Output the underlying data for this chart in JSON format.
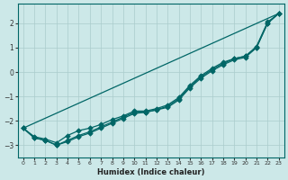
{
  "xlabel": "Humidex (Indice chaleur)",
  "background_color": "#cce8e8",
  "grid_color": "#aacccc",
  "line_color": "#006666",
  "xlim": [
    -0.5,
    23.5
  ],
  "ylim": [
    -3.5,
    2.8
  ],
  "yticks": [
    -3,
    -2,
    -1,
    0,
    1,
    2
  ],
  "xticks": [
    0,
    1,
    2,
    3,
    4,
    5,
    6,
    7,
    8,
    9,
    10,
    11,
    12,
    13,
    14,
    15,
    16,
    17,
    18,
    19,
    20,
    21,
    22,
    23
  ],
  "line1_x": [
    0,
    1,
    2,
    3,
    4,
    5,
    6,
    7,
    8,
    9,
    10,
    11,
    12,
    13,
    14,
    15,
    16,
    17,
    18,
    19,
    20,
    21,
    22,
    23
  ],
  "line1_y": [
    -2.3,
    -2.7,
    -2.8,
    -3.0,
    -2.85,
    -2.65,
    -2.5,
    -2.3,
    -2.1,
    -1.9,
    -1.7,
    -1.65,
    -1.55,
    -1.4,
    -1.1,
    -0.6,
    -0.2,
    0.1,
    0.35,
    0.55,
    0.65,
    1.05,
    2.05,
    2.4
  ],
  "line2_x": [
    0,
    1,
    2,
    3,
    4,
    5,
    6,
    7,
    8,
    9,
    10,
    11,
    12,
    13,
    14,
    15,
    16,
    17,
    18,
    19,
    20,
    21,
    22,
    23
  ],
  "line2_y": [
    -2.3,
    -2.7,
    -2.8,
    -3.0,
    -2.8,
    -2.6,
    -2.45,
    -2.25,
    -2.05,
    -1.85,
    -1.65,
    -1.65,
    -1.55,
    -1.45,
    -1.15,
    -0.65,
    -0.25,
    0.05,
    0.3,
    0.5,
    0.6,
    1.0,
    2.0,
    2.4
  ],
  "line3_x": [
    0,
    1,
    2,
    3,
    4,
    5,
    6,
    7,
    8,
    9,
    10,
    11,
    12,
    13,
    14,
    15,
    16,
    17,
    18,
    19,
    20,
    21,
    22,
    23
  ],
  "line3_y": [
    -2.3,
    -2.65,
    -2.75,
    -2.9,
    -2.6,
    -2.4,
    -2.3,
    -2.15,
    -1.95,
    -1.8,
    -1.6,
    -1.6,
    -1.5,
    -1.35,
    -1.05,
    -0.55,
    -0.15,
    0.15,
    0.4,
    0.55,
    0.65,
    1.0,
    2.0,
    2.4
  ],
  "line4_x": [
    0,
    23
  ],
  "line4_y": [
    -2.3,
    2.4
  ]
}
